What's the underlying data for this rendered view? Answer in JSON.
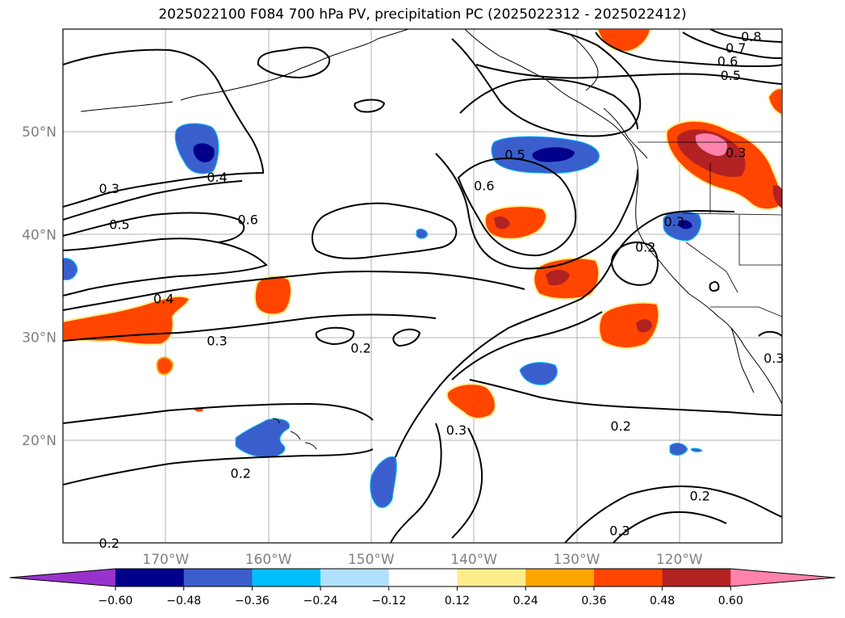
{
  "title": "2025022100 F084 700 hPa PV, precipitation PC (2025022312 - 2025022412)",
  "map": {
    "lon_range": [
      -180,
      -110
    ],
    "lat_range": [
      10,
      60
    ],
    "lon_ticks": [
      {
        "value": -170,
        "label": "170°W"
      },
      {
        "value": -160,
        "label": "160°W"
      },
      {
        "value": -150,
        "label": "150°W"
      },
      {
        "value": -140,
        "label": "140°W"
      },
      {
        "value": -130,
        "label": "130°W"
      },
      {
        "value": -120,
        "label": "120°W"
      }
    ],
    "lat_ticks": [
      {
        "value": 20,
        "label": "20°N"
      },
      {
        "value": 30,
        "label": "30°N"
      },
      {
        "value": 40,
        "label": "40°N"
      },
      {
        "value": 50,
        "label": "50°N"
      }
    ],
    "contour_labels": [
      {
        "text": "0.8",
        "lon": -113.0,
        "lat": 59.3
      },
      {
        "text": "0.7",
        "lon": -114.5,
        "lat": 58.2
      },
      {
        "text": "0.6",
        "lon": -115.3,
        "lat": 56.9
      },
      {
        "text": "0.5",
        "lon": -115.0,
        "lat": 55.5
      },
      {
        "text": "0.3",
        "lon": -114.5,
        "lat": 48.0
      },
      {
        "text": "0.5",
        "lon": -136.0,
        "lat": 47.8
      },
      {
        "text": "0.6",
        "lon": -139.0,
        "lat": 44.8
      },
      {
        "text": "0.3",
        "lon": -120.5,
        "lat": 41.3
      },
      {
        "text": "0.2",
        "lon": -123.3,
        "lat": 38.8
      },
      {
        "text": "0.3",
        "lon": -175.5,
        "lat": 44.5
      },
      {
        "text": "0.4",
        "lon": -165.0,
        "lat": 45.6
      },
      {
        "text": "0.5",
        "lon": -174.5,
        "lat": 41.0
      },
      {
        "text": "0.6",
        "lon": -162.0,
        "lat": 41.5
      },
      {
        "text": "0.4",
        "lon": -170.2,
        "lat": 33.8
      },
      {
        "text": "0.3",
        "lon": -165.0,
        "lat": 29.7
      },
      {
        "text": "0.2",
        "lon": -151.0,
        "lat": 29.0
      },
      {
        "text": "0.3",
        "lon": -141.7,
        "lat": 21.0
      },
      {
        "text": "0.2",
        "lon": -125.7,
        "lat": 21.4
      },
      {
        "text": "0.2",
        "lon": -162.7,
        "lat": 16.8
      },
      {
        "text": "0.2",
        "lon": -118.0,
        "lat": 14.6
      },
      {
        "text": "0.3",
        "lon": -125.8,
        "lat": 11.2
      },
      {
        "text": "0.2",
        "lon": -175.5,
        "lat": 10.0
      },
      {
        "text": "0.3",
        "lon": -110.8,
        "lat": 28.0
      }
    ]
  },
  "colorbar": {
    "ticks": [
      "−0.60",
      "−0.48",
      "−0.36",
      "−0.24",
      "−0.12",
      "0.12",
      "0.24",
      "0.36",
      "0.48",
      "0.60"
    ],
    "colors": [
      "#9932cc",
      "#00008b",
      "#3a5fcd",
      "#00bfff",
      "#b0e2ff",
      "#ffffff",
      "#ffec8b",
      "#ffa500",
      "#ff4500",
      "#b22222",
      "#ff82ab"
    ]
  }
}
